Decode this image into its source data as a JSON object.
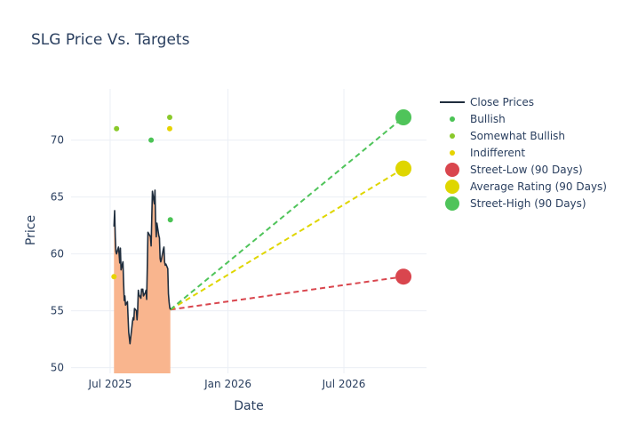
{
  "chart_data": {
    "type": "line",
    "title": "SLG Price Vs. Targets",
    "xlabel": "Date",
    "ylabel": "Price",
    "x_range": [
      "2025-05-01",
      "2026-11-07"
    ],
    "y_range": [
      49.5,
      74.5
    ],
    "x_ticks": [
      {
        "date": "2025-07-01",
        "label": "Jul 2025"
      },
      {
        "date": "2026-01-01",
        "label": "Jan 2026"
      },
      {
        "date": "2026-07-01",
        "label": "Jul 2026"
      }
    ],
    "y_ticks": [
      50,
      55,
      60,
      65,
      70
    ],
    "grid": true,
    "legend_position": "top-right",
    "close_prices": {
      "name": "Close Prices",
      "color": "#1f2d3d",
      "fill_color": "#f9b58e",
      "x": [
        "2025-07-07",
        "2025-07-08",
        "2025-07-09",
        "2025-07-10",
        "2025-07-11",
        "2025-07-14",
        "2025-07-15",
        "2025-07-16",
        "2025-07-17",
        "2025-07-18",
        "2025-07-21",
        "2025-07-22",
        "2025-07-23",
        "2025-07-24",
        "2025-07-25",
        "2025-07-28",
        "2025-07-29",
        "2025-07-30",
        "2025-07-31",
        "2025-08-01",
        "2025-08-04",
        "2025-08-05",
        "2025-08-06",
        "2025-08-07",
        "2025-08-08",
        "2025-08-11",
        "2025-08-12",
        "2025-08-13",
        "2025-08-14",
        "2025-08-15",
        "2025-08-18",
        "2025-08-19",
        "2025-08-20",
        "2025-08-21",
        "2025-08-22",
        "2025-08-25",
        "2025-08-26",
        "2025-08-27",
        "2025-08-28",
        "2025-08-29",
        "2025-09-02",
        "2025-09-03",
        "2025-09-04",
        "2025-09-05",
        "2025-09-08",
        "2025-09-09",
        "2025-09-10",
        "2025-09-11",
        "2025-09-12",
        "2025-09-15",
        "2025-09-16",
        "2025-09-17",
        "2025-09-18",
        "2025-09-19",
        "2025-09-22",
        "2025-09-23",
        "2025-09-24",
        "2025-09-25",
        "2025-09-26",
        "2025-09-29",
        "2025-09-30",
        "2025-10-01",
        "2025-10-02",
        "2025-10-03"
      ],
      "y": [
        62.4,
        63.8,
        61.5,
        60.2,
        60.0,
        60.6,
        60.0,
        59.2,
        60.5,
        58.6,
        59.3,
        57.5,
        55.9,
        56.3,
        55.5,
        55.8,
        54.4,
        53.1,
        52.6,
        52.1,
        53.6,
        54.1,
        54.4,
        54.2,
        55.2,
        55.0,
        54.2,
        55.1,
        56.8,
        56.4,
        56.1,
        56.9,
        56.7,
        56.9,
        56.3,
        56.6,
        56.8,
        56.0,
        58.8,
        61.9,
        61.5,
        60.7,
        63.2,
        65.5,
        64.4,
        65.6,
        62.8,
        61.5,
        62.7,
        61.6,
        61.4,
        59.6,
        59.3,
        59.5,
        60.4,
        60.6,
        59.3,
        59.0,
        59.1,
        58.7,
        56.5,
        55.8,
        55.3,
        55.1
      ]
    },
    "analyst_points": [
      {
        "name": "Bullish",
        "color": "#4bc355",
        "points": [
          {
            "x": "2025-09-03",
            "y": 70.0
          },
          {
            "x": "2025-10-03",
            "y": 63.0
          }
        ]
      },
      {
        "name": "Somewhat Bullish",
        "color": "#8ac92b",
        "points": [
          {
            "x": "2025-07-11",
            "y": 71.0
          },
          {
            "x": "2025-10-02",
            "y": 72.0
          }
        ]
      },
      {
        "name": "Indifferent",
        "color": "#e6d300",
        "points": [
          {
            "x": "2025-07-07",
            "y": 58.0
          },
          {
            "x": "2025-10-02",
            "y": 71.0
          }
        ]
      }
    ],
    "targets": {
      "start": {
        "x": "2025-10-03",
        "y": 55.1
      },
      "end_date": "2026-10-02",
      "series": [
        {
          "name": "Street-Low (90 Days)",
          "color": "#d9464e",
          "y": 58.0
        },
        {
          "name": "Average Rating (90 Days)",
          "color": "#dfd600",
          "y": 67.5
        },
        {
          "name": "Street-High (90 Days)",
          "color": "#4fc45a",
          "y": 72.0
        }
      ]
    }
  }
}
